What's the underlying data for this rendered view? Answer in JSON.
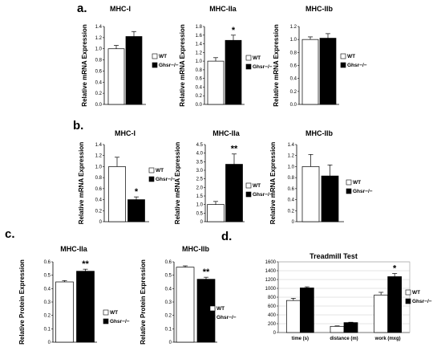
{
  "panels": {
    "a": "a.",
    "b": "b.",
    "c": "c.",
    "d": "d."
  },
  "legend": {
    "wt": "WT",
    "ko": "Ghsr−/−"
  },
  "colors": {
    "wt": "#ffffff",
    "ko": "#000000",
    "axis": "#000000"
  },
  "chart_data": [
    {
      "id": "a1",
      "type": "bar",
      "title": "MHC-I",
      "ylabel": "Relative mRNA Expression",
      "ylim": [
        0,
        1.4
      ],
      "yticks": [
        0,
        0.2,
        0.4,
        0.6,
        0.8,
        1.0,
        1.2,
        1.4
      ],
      "ytick_labels": [
        "0.0",
        "0.2",
        "0.4",
        "0.6",
        "0.8",
        "1.0",
        "1.2",
        "1.4"
      ],
      "categories": [
        ""
      ],
      "series": [
        {
          "name": "WT",
          "values": [
            1.0
          ],
          "error": [
            0.06
          ]
        },
        {
          "name": "Ghsr−/−",
          "values": [
            1.22
          ],
          "error": [
            0.09
          ]
        }
      ],
      "significance": [
        ""
      ]
    },
    {
      "id": "a2",
      "type": "bar",
      "title": "MHC-IIa",
      "ylabel": "Relative mRNA Expression",
      "ylim": [
        0,
        1.8
      ],
      "yticks": [
        0,
        0.2,
        0.4,
        0.6,
        0.8,
        1.0,
        1.2,
        1.4,
        1.6,
        1.8
      ],
      "ytick_labels": [
        "0.0",
        "0.2",
        "0.4",
        "0.6",
        "0.8",
        "1.0",
        "1.2",
        "1.4",
        "1.6",
        "1.8"
      ],
      "categories": [
        ""
      ],
      "series": [
        {
          "name": "WT",
          "values": [
            1.0
          ],
          "error": [
            0.08
          ]
        },
        {
          "name": "Ghsr−/−",
          "values": [
            1.48
          ],
          "error": [
            0.12
          ]
        }
      ],
      "significance": [
        "*"
      ]
    },
    {
      "id": "a3",
      "type": "bar",
      "title": "MHC-IIb",
      "ylabel": "Relative mRNA Expression",
      "ylim": [
        0,
        1.2
      ],
      "yticks": [
        0,
        0.2,
        0.4,
        0.6,
        0.8,
        1.0,
        1.2
      ],
      "ytick_labels": [
        "0.0",
        "0.2",
        "0.4",
        "0.6",
        "0.8",
        "1.0",
        "1.2"
      ],
      "categories": [
        ""
      ],
      "series": [
        {
          "name": "WT",
          "values": [
            1.0
          ],
          "error": [
            0.04
          ]
        },
        {
          "name": "Ghsr−/−",
          "values": [
            1.02
          ],
          "error": [
            0.07
          ]
        }
      ],
      "significance": [
        ""
      ]
    },
    {
      "id": "b1",
      "type": "bar",
      "title": "MHC-I",
      "ylabel": "Relative mRNA Expression",
      "ylim": [
        0,
        1.4
      ],
      "yticks": [
        0,
        0.2,
        0.4,
        0.6,
        0.8,
        1.0,
        1.2,
        1.4
      ],
      "ytick_labels": [
        "0",
        "0.2",
        "0.4",
        "0.6",
        "0.8",
        "1.0",
        "1.2",
        "1.4"
      ],
      "categories": [
        ""
      ],
      "series": [
        {
          "name": "WT",
          "values": [
            1.0
          ],
          "error": [
            0.17
          ]
        },
        {
          "name": "Ghsr−/−",
          "values": [
            0.4
          ],
          "error": [
            0.05
          ]
        }
      ],
      "significance": [
        "*"
      ]
    },
    {
      "id": "b2",
      "type": "bar",
      "title": "MHC-IIa",
      "ylabel": "Relative mRNA Expression",
      "ylim": [
        0,
        4.5
      ],
      "yticks": [
        0,
        0.5,
        1.0,
        1.5,
        2.0,
        2.5,
        3.0,
        3.5,
        4.0,
        4.5
      ],
      "ytick_labels": [
        "0",
        "0.5",
        "1.0",
        "1.5",
        "2.0",
        "2.5",
        "3.0",
        "3.5",
        "4.0",
        "4.5"
      ],
      "categories": [
        ""
      ],
      "series": [
        {
          "name": "WT",
          "values": [
            1.0
          ],
          "error": [
            0.18
          ]
        },
        {
          "name": "Ghsr−/−",
          "values": [
            3.35
          ],
          "error": [
            0.6
          ]
        }
      ],
      "significance": [
        "**"
      ]
    },
    {
      "id": "b3",
      "type": "bar",
      "title": "MHC-IIb",
      "ylabel": "Relative mRNA Expression",
      "ylim": [
        0,
        1.4
      ],
      "yticks": [
        0,
        0.2,
        0.4,
        0.6,
        0.8,
        1.0,
        1.2,
        1.4
      ],
      "ytick_labels": [
        "0",
        "0.2",
        "0.4",
        "0.6",
        "0.8",
        "1.0",
        "1.2",
        "1.4"
      ],
      "categories": [
        ""
      ],
      "series": [
        {
          "name": "WT",
          "values": [
            1.0
          ],
          "error": [
            0.22
          ]
        },
        {
          "name": "Ghsr−/−",
          "values": [
            0.83
          ],
          "error": [
            0.2
          ]
        }
      ],
      "significance": [
        ""
      ]
    },
    {
      "id": "c1",
      "type": "bar",
      "title": "MHC-IIa",
      "ylabel": "Relative Protein Expression",
      "ylim": [
        0,
        0.6
      ],
      "yticks": [
        0,
        0.1,
        0.2,
        0.3,
        0.4,
        0.5,
        0.6
      ],
      "ytick_labels": [
        "0",
        "0.1",
        "0.2",
        "0.3",
        "0.4",
        "0.5",
        "0.6"
      ],
      "categories": [
        ""
      ],
      "series": [
        {
          "name": "WT",
          "values": [
            0.45
          ],
          "error": [
            0.01
          ]
        },
        {
          "name": "Ghsr−/−",
          "values": [
            0.53
          ],
          "error": [
            0.015
          ]
        }
      ],
      "significance": [
        "**"
      ]
    },
    {
      "id": "c2",
      "type": "bar",
      "title": "MHC-IIb",
      "ylabel": "Relative Protein Expression",
      "ylim": [
        0,
        0.6
      ],
      "yticks": [
        0,
        0.1,
        0.2,
        0.3,
        0.4,
        0.5,
        0.6
      ],
      "ytick_labels": [
        "0",
        "0.1",
        "0.2",
        "0.3",
        "0.4",
        "0.5",
        "0.6"
      ],
      "categories": [
        ""
      ],
      "series": [
        {
          "name": "WT",
          "values": [
            0.56
          ],
          "error": [
            0.01
          ]
        },
        {
          "name": "Ghsr−/−",
          "values": [
            0.47
          ],
          "error": [
            0.015
          ]
        }
      ],
      "significance": [
        "**"
      ]
    },
    {
      "id": "d1",
      "type": "bar",
      "title": "Treadmill Test",
      "ylabel": "",
      "ylim": [
        0,
        1600
      ],
      "yticks": [
        0,
        200,
        400,
        600,
        800,
        1000,
        1200,
        1400,
        1600
      ],
      "ytick_labels": [
        "0",
        "200",
        "400",
        "600",
        "800",
        "1000",
        "1200",
        "1400",
        "1600"
      ],
      "categories": [
        "time (s)",
        "distance (m)",
        "work (mxg)"
      ],
      "series": [
        {
          "name": "WT",
          "values": [
            725,
            140,
            850
          ],
          "error": [
            50,
            10,
            60
          ]
        },
        {
          "name": "Ghsr−/−",
          "values": [
            1010,
            225,
            1265
          ],
          "error": [
            25,
            8,
            70
          ]
        }
      ],
      "significance": [
        "",
        "",
        "*"
      ]
    }
  ]
}
